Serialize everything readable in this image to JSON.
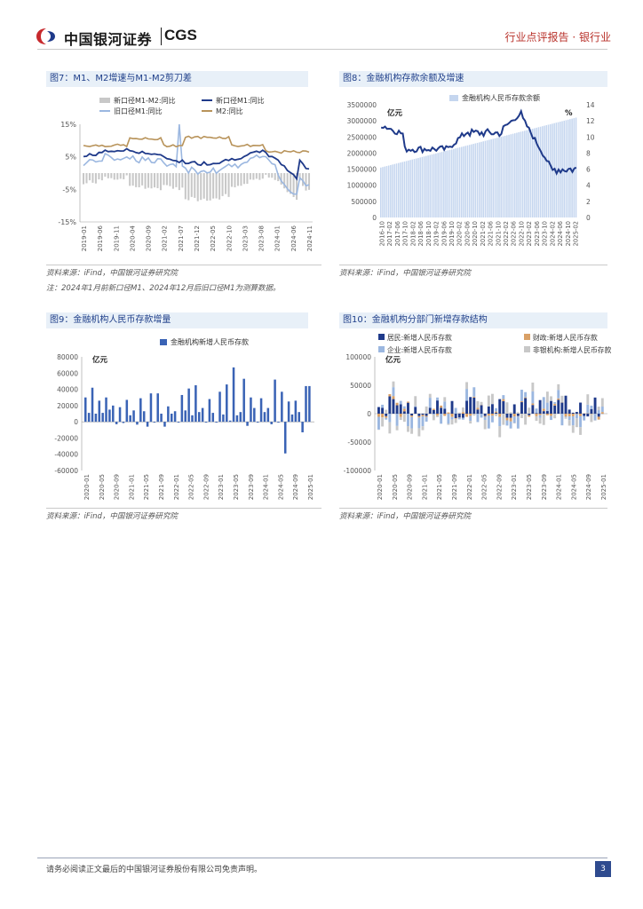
{
  "header": {
    "brand_cn": "中国银河证券",
    "brand_en": "CGS",
    "right_text": "行业点评报告 · 银行业"
  },
  "fig7": {
    "title": "图7：M1、M2增速与M1-M2剪刀差",
    "legend": [
      "新口径M1-M2:同比",
      "新口径M1:同比",
      "旧口径M1:同比",
      "M2:同比"
    ],
    "yticks": [
      "15%",
      "5%",
      "-5%",
      "-15%"
    ],
    "xticks": [
      "2019-01",
      "2019-06",
      "2019-11",
      "2020-04",
      "2020-09",
      "2021-02",
      "2021-07",
      "2021-12",
      "2022-05",
      "2022-10",
      "2023-03",
      "2023-08",
      "2024-01",
      "2024-06",
      "2024-11"
    ],
    "source": "资料来源：iFind，中国银河证券研究院",
    "note": "注：2024年1月前新口径M1、2024年12月后旧口径M1为测算数据。"
  },
  "fig8": {
    "title": "图8：金融机构存款余额及增速",
    "legend": "金融机构人民币存款余额",
    "unit_left": "亿元",
    "unit_right": "%",
    "yticks_left": [
      "3500000",
      "3000000",
      "2500000",
      "2000000",
      "1500000",
      "1000000",
      "500000",
      "0"
    ],
    "yticks_right": [
      "14",
      "12",
      "10",
      "8",
      "6",
      "4",
      "2",
      "0"
    ],
    "xticks": [
      "2016-10",
      "2017-02",
      "2017-06",
      "2017-10",
      "2018-02",
      "2018-06",
      "2018-10",
      "2019-02",
      "2019-06",
      "2019-10",
      "2020-02",
      "2020-06",
      "2020-10",
      "2021-02",
      "2021-06",
      "2021-10",
      "2022-02",
      "2022-06",
      "2022-10",
      "2023-02",
      "2023-06",
      "2023-10",
      "2024-02",
      "2024-06",
      "2024-10",
      "2025-02"
    ],
    "source": "资料来源：iFind，中国银河证券研究院"
  },
  "fig9": {
    "title": "图9：金融机构人民币存款增量",
    "legend": "金融机构新增人民币存款",
    "unit": "亿元",
    "yticks": [
      "80000",
      "60000",
      "40000",
      "20000",
      "0",
      "-20000",
      "-40000",
      "-60000"
    ],
    "xticks": [
      "2020-01",
      "2020-05",
      "2020-09",
      "2021-01",
      "2021-05",
      "2021-09",
      "2022-01",
      "2022-05",
      "2022-09",
      "2023-01",
      "2023-05",
      "2023-09",
      "2024-01",
      "2024-05",
      "2024-09",
      "2025-01"
    ],
    "source": "资料来源：iFind，中国银河证券研究院"
  },
  "fig10": {
    "title": "图10：金融机构分部门新增存款结构",
    "legend": [
      "居民:新增人民币存款",
      "财政:新增人民币存款",
      "企业:新增人民币存款",
      "非银机构:新增人民币存款"
    ],
    "unit": "亿元",
    "yticks": [
      "100000",
      "50000",
      "0",
      "-50000",
      "-100000"
    ],
    "xticks": [
      "2020-01",
      "2020-05",
      "2020-09",
      "2021-01",
      "2021-05",
      "2021-09",
      "2022-01",
      "2022-05",
      "2022-09",
      "2023-01",
      "2023-05",
      "2023-09",
      "2024-01",
      "2024-05",
      "2024-09",
      "2025-01"
    ],
    "source": "资料来源：iFind，中国银河证券研究院"
  },
  "footer": {
    "disclaimer": "请务必阅读正文最后的中国银河证券股份有限公司免责声明。",
    "page": "3"
  },
  "colors": {
    "navy": "#1f3a8a",
    "light_blue": "#9bb7e0",
    "gold": "#b8935a",
    "gray_bar": "#c8c8c8",
    "bar_blue": "#3a63b5",
    "pale_bar": "#c5d6ef",
    "orange": "#d9a066"
  }
}
